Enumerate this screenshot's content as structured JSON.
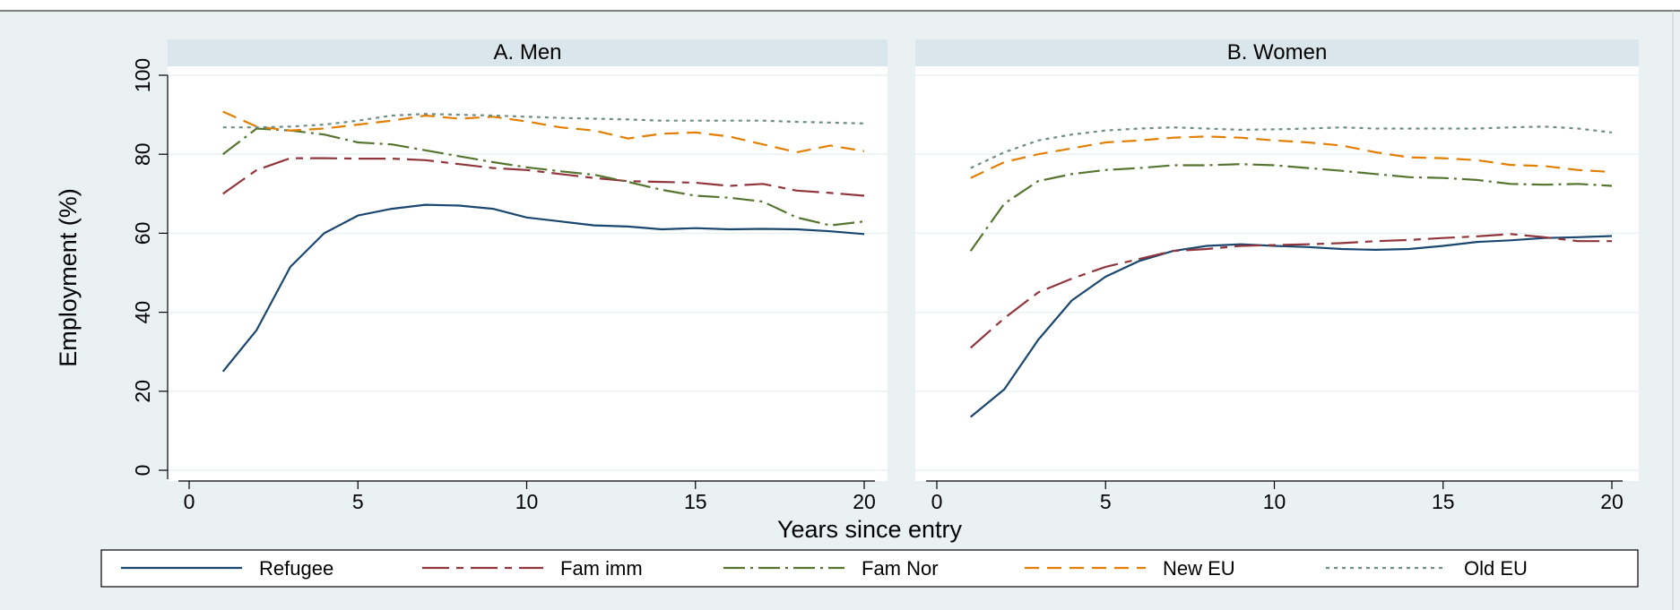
{
  "chart_data": {
    "type": "line",
    "ylabel": "Employment (%)",
    "xlabel": "Years since entry",
    "xlim": [
      0,
      20
    ],
    "ylim": [
      0,
      100
    ],
    "xticks": [
      0,
      5,
      10,
      15,
      20
    ],
    "yticks": [
      0,
      20,
      40,
      60,
      80,
      100
    ],
    "grid": true,
    "legend_position": "bottom",
    "x": [
      1,
      2,
      3,
      4,
      5,
      6,
      7,
      8,
      9,
      10,
      11,
      12,
      13,
      14,
      15,
      16,
      17,
      18,
      19,
      20
    ],
    "series_styles": [
      {
        "name": "Refugee",
        "color": "#1a476f",
        "dash": ""
      },
      {
        "name": "Fam imm",
        "color": "#90353b",
        "dash": "30 8 8 8"
      },
      {
        "name": "Fam Nor",
        "color": "#55752f",
        "dash": "24 6 3 6"
      },
      {
        "name": "New EU",
        "color": "#e37e00",
        "dash": "16 9"
      },
      {
        "name": "Old EU",
        "color": "#6e8e84",
        "dash": "4 5"
      }
    ],
    "panels": [
      {
        "title": "A. Men",
        "series": [
          {
            "name": "Refugee",
            "values": [
              25,
              35.5,
              51.5,
              60,
              64.5,
              66.2,
              67.2,
              67,
              66.2,
              64,
              63,
              62,
              61.7,
              61,
              61.3,
              61,
              61.1,
              61,
              60.5,
              59.8
            ]
          },
          {
            "name": "Fam imm",
            "values": [
              70,
              76,
              79,
              79,
              78.9,
              78.9,
              78.5,
              77.5,
              76.5,
              76,
              75,
              74,
              73.2,
              73,
              72.8,
              72,
              72.5,
              70.8,
              70.2,
              69.5
            ]
          },
          {
            "name": "Fam Nor",
            "values": [
              80,
              86.5,
              86,
              85,
              83,
              82.5,
              81,
              79.5,
              78,
              76.7,
              75.7,
              74.8,
              73,
              71,
              69.5,
              69,
              68,
              64,
              62,
              63
            ]
          },
          {
            "name": "New EU",
            "values": [
              90.8,
              87,
              86,
              86.5,
              87.5,
              88.5,
              89.8,
              89,
              89.5,
              88.3,
              86.8,
              86,
              84,
              85.2,
              85.5,
              84.5,
              82.5,
              80.5,
              82.2,
              80.8
            ]
          },
          {
            "name": "Old EU",
            "values": [
              86.8,
              86.8,
              87,
              87.5,
              88.5,
              89.8,
              90.2,
              90,
              89.8,
              89.5,
              89.2,
              89,
              88.8,
              88.5,
              88.5,
              88.5,
              88.5,
              88.2,
              88,
              87.8
            ]
          }
        ]
      },
      {
        "title": "B. Women",
        "series": [
          {
            "name": "Refugee",
            "values": [
              13.5,
              20.5,
              33,
              43,
              49,
              53,
              55.5,
              56.8,
              57.2,
              56.8,
              56.5,
              56,
              55.8,
              56,
              56.8,
              57.8,
              58.2,
              58.8,
              59,
              59.3
            ]
          },
          {
            "name": "Fam imm",
            "values": [
              31,
              38.5,
              45,
              48.5,
              51.5,
              53.5,
              55.5,
              56,
              56.8,
              57,
              57.2,
              57.5,
              58,
              58.3,
              58.8,
              59.2,
              59.8,
              59,
              58,
              58
            ]
          },
          {
            "name": "Fam Nor",
            "values": [
              55.5,
              67.5,
              73.2,
              75,
              76,
              76.5,
              77.2,
              77.2,
              77.5,
              77.2,
              76.5,
              75.8,
              75,
              74.2,
              74,
              73.5,
              72.5,
              72.3,
              72.5,
              72
            ]
          },
          {
            "name": "New EU",
            "values": [
              74,
              78,
              80,
              81.5,
              83,
              83.5,
              84.2,
              84.5,
              84.2,
              83.5,
              83,
              82.2,
              80.5,
              79.2,
              79,
              78.5,
              77.3,
              77,
              76,
              75.5
            ]
          },
          {
            "name": "Old EU",
            "values": [
              76.5,
              80.5,
              83.5,
              85,
              86,
              86.5,
              86.8,
              86.5,
              86.2,
              86.3,
              86.5,
              86.8,
              86.5,
              86.5,
              86.5,
              86.5,
              86.8,
              87,
              86.5,
              85.5
            ]
          }
        ]
      }
    ]
  }
}
